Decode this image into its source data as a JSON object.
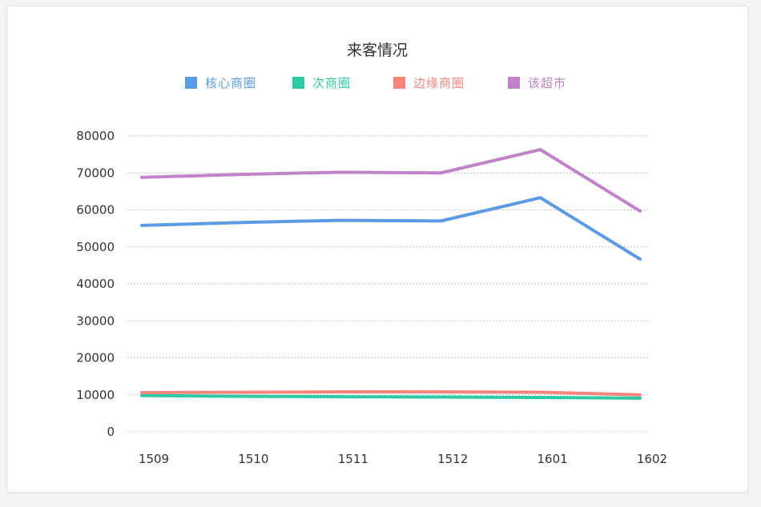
{
  "chart_data": {
    "type": "line",
    "title": "来客情况",
    "xlabel": "",
    "ylabel": "",
    "categories": [
      "1509",
      "1510",
      "1511",
      "1512",
      "1601",
      "1602"
    ],
    "ylim": [
      0,
      80000
    ],
    "yticks": [
      0,
      10000,
      20000,
      30000,
      40000,
      50000,
      60000,
      70000,
      80000
    ],
    "grid": true,
    "legend_position": "top",
    "series": [
      {
        "name": "核心商圈",
        "color": "#5b9be6",
        "values": [
          55800,
          56600,
          57200,
          57000,
          63300,
          46700
        ]
      },
      {
        "name": "次商圈",
        "color": "#2ecaa6",
        "values": [
          9800,
          9600,
          9500,
          9400,
          9300,
          9100
        ]
      },
      {
        "name": "边缘商圈",
        "color": "#f7857c",
        "values": [
          10600,
          10700,
          10800,
          10800,
          10700,
          10000
        ]
      },
      {
        "name": "该超市",
        "color": "#c082c8",
        "values": [
          68800,
          69600,
          70200,
          70000,
          76300,
          59700
        ]
      }
    ]
  }
}
